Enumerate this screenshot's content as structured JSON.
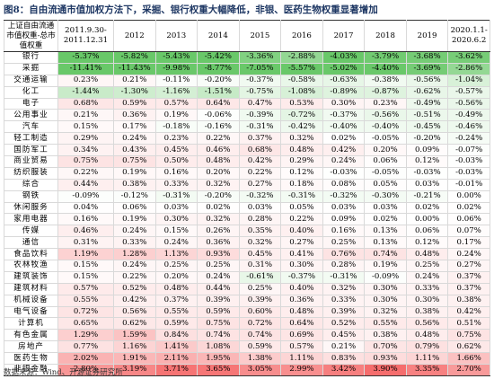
{
  "title": "图8：自由流通市值加权方法下，采掘、银行权重大幅降低，非银、医药生物权重显著增加",
  "table": {
    "header": [
      "上证自由流通市值权重-总市值权重",
      "2011.9.30-2011.12.31",
      "2012",
      "2013",
      "2014",
      "2015",
      "2016",
      "2017",
      "2018",
      "2019",
      "2020.1.1-2020.6.2"
    ],
    "rows": [
      [
        "银行",
        "-5.37%",
        "-5.82%",
        "-5.43%",
        "-5.42%",
        "-3.36%",
        "-2.88%",
        "-4.03%",
        "-3.79%",
        "-3.68%",
        "-3.62%"
      ],
      [
        "采掘",
        "-11.41%",
        "-11.43%",
        "-9.98%",
        "-8.77%",
        "-7.05%",
        "-5.57%",
        "-5.02%",
        "-4.40%",
        "-3.69%",
        "-2.86%"
      ],
      [
        "交通运输",
        "0.23%",
        "0.21%",
        "-0.11%",
        "-0.20%",
        "-0.37%",
        "-0.58%",
        "-0.63%",
        "-0.38%",
        "-0.56%",
        "-1.04%"
      ],
      [
        "化工",
        "-1.44%",
        "-1.30%",
        "-1.16%",
        "-1.51%",
        "-0.75%",
        "-1.08%",
        "-0.89%",
        "-0.87%",
        "-0.62%",
        "-0.57%"
      ],
      [
        "电子",
        "0.68%",
        "0.59%",
        "0.57%",
        "0.64%",
        "0.47%",
        "0.53%",
        "0.30%",
        "0.23%",
        "-0.49%",
        "-0.56%"
      ],
      [
        "公用事业",
        "0.21%",
        "0.36%",
        "0.19%",
        "-0.06%",
        "-0.39%",
        "-0.72%",
        "-0.37%",
        "-0.56%",
        "-0.51%",
        "-0.49%"
      ],
      [
        "汽车",
        "0.15%",
        "0.17%",
        "-0.18%",
        "-0.16%",
        "-0.31%",
        "-0.42%",
        "-0.40%",
        "-0.40%",
        "-0.45%",
        "-0.46%"
      ],
      [
        "轻工制造",
        "0.29%",
        "0.24%",
        "0.23%",
        "0.22%",
        "0.37%",
        "0.32%",
        "0.02%",
        "-0.05%",
        "-0.20%",
        "-0.24%"
      ],
      [
        "国防军工",
        "0.34%",
        "0.43%",
        "0.45%",
        "0.46%",
        "0.68%",
        "0.48%",
        "0.42%",
        "0.20%",
        "0.09%",
        "-0.07%"
      ],
      [
        "商业贸易",
        "0.75%",
        "0.75%",
        "0.50%",
        "0.48%",
        "0.42%",
        "0.29%",
        "0.24%",
        "0.06%",
        "0.12%",
        "-0.03%"
      ],
      [
        "纺织服装",
        "0.22%",
        "0.19%",
        "0.16%",
        "0.20%",
        "0.22%",
        "0.12%",
        "-0.03%",
        "-0.05%",
        "-0.03%",
        "-0.03%"
      ],
      [
        "综合",
        "0.44%",
        "0.38%",
        "0.33%",
        "0.32%",
        "0.27%",
        "0.18%",
        "0.08%",
        "0.05%",
        "0.03%",
        "-0.01%"
      ],
      [
        "钢铁",
        "-0.09%",
        "-0.12%",
        "-0.31%",
        "-0.20%",
        "-0.32%",
        "-0.31%",
        "-0.32%",
        "-0.30%",
        "-0.21%",
        "0.00%"
      ],
      [
        "休闲服务",
        "0.04%",
        "0.06%",
        "0.03%",
        "0.02%",
        "0.03%",
        "0.05%",
        "0.03%",
        "0.03%",
        "0.02%",
        "0.02%"
      ],
      [
        "家用电器",
        "0.16%",
        "0.19%",
        "0.30%",
        "0.32%",
        "0.28%",
        "0.22%",
        "0.09%",
        "0.02%",
        "0.00%",
        "0.06%"
      ],
      [
        "传媒",
        "0.46%",
        "0.24%",
        "0.15%",
        "0.26%",
        "0.35%",
        "0.40%",
        "0.16%",
        "0.13%",
        "0.06%",
        "0.07%"
      ],
      [
        "通信",
        "0.31%",
        "0.33%",
        "0.24%",
        "0.36%",
        "0.32%",
        "0.27%",
        "0.25%",
        "0.13%",
        "0.12%",
        "0.17%"
      ],
      [
        "食品饮料",
        "1.19%",
        "1.28%",
        "1.13%",
        "0.93%",
        "0.45%",
        "0.41%",
        "0.76%",
        "0.74%",
        "0.48%",
        "0.24%"
      ],
      [
        "农林牧渔",
        "0.15%",
        "0.24%",
        "0.25%",
        "0.25%",
        "0.31%",
        "0.30%",
        "0.28%",
        "0.19%",
        "0.25%",
        "0.27%"
      ],
      [
        "建筑装饰",
        "0.15%",
        "0.22%",
        "0.20%",
        "0.24%",
        "-0.61%",
        "-0.37%",
        "-0.31%",
        "-0.09%",
        "0.24%",
        "0.37%"
      ],
      [
        "建筑材料",
        "0.57%",
        "0.52%",
        "0.48%",
        "0.44%",
        "0.25%",
        "0.40%",
        "0.32%",
        "0.30%",
        "0.33%",
        "0.37%"
      ],
      [
        "机械设备",
        "0.55%",
        "0.42%",
        "0.37%",
        "0.39%",
        "0.39%",
        "0.36%",
        "0.33%",
        "0.30%",
        "0.30%",
        "0.38%"
      ],
      [
        "电气设备",
        "0.72%",
        "0.56%",
        "0.55%",
        "0.59%",
        "0.60%",
        "0.48%",
        "0.39%",
        "0.32%",
        "0.38%",
        "0.42%"
      ],
      [
        "计算机",
        "0.65%",
        "0.62%",
        "0.59%",
        "0.75%",
        "0.72%",
        "0.64%",
        "0.52%",
        "0.55%",
        "0.56%",
        "0.51%"
      ],
      [
        "有色金属",
        "1.29%",
        "1.59%",
        "0.84%",
        "0.74%",
        "0.74%",
        "0.69%",
        "0.45%",
        "0.38%",
        "0.48%",
        "0.75%"
      ],
      [
        "房地产",
        "0.77%",
        "1.16%",
        "1.41%",
        "1.08%",
        "0.59%",
        "0.57%",
        "0.21%",
        "0.70%",
        "0.79%",
        "0.62%"
      ],
      [
        "医药生物",
        "2.02%",
        "1.91%",
        "2.11%",
        "1.95%",
        "1.38%",
        "1.11%",
        "0.83%",
        "0.93%",
        "1.11%",
        "1.66%"
      ],
      [
        "非银金融",
        "2.80%",
        "3.19%",
        "3.71%",
        "3.65%",
        "3.05%",
        "2.99%",
        "3.42%",
        "3.90%",
        "3.35%",
        "2.70%"
      ]
    ]
  },
  "source": "数据来源：Wind、开源证券研究所"
}
